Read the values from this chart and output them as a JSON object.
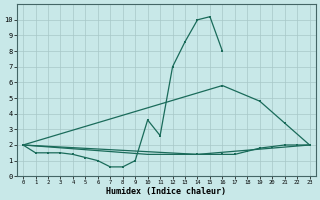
{
  "xlabel": "Humidex (Indice chaleur)",
  "background_color": "#c8e8e8",
  "line_color": "#1a6b5a",
  "curve1_x": [
    0,
    1,
    2,
    3,
    4,
    5,
    6,
    7,
    8,
    9,
    10,
    11,
    12,
    13,
    14,
    15,
    16
  ],
  "curve1_y": [
    2.0,
    1.5,
    1.5,
    1.5,
    1.4,
    1.2,
    1.0,
    0.6,
    0.6,
    1.0,
    3.6,
    2.6,
    7.0,
    8.6,
    10.0,
    10.2,
    8.0
  ],
  "curve2_x": [
    0,
    10,
    14,
    23
  ],
  "curve2_y": [
    2.0,
    1.4,
    1.4,
    2.0
  ],
  "curve3_x": [
    0,
    16,
    19,
    21,
    23
  ],
  "curve3_y": [
    2.0,
    5.8,
    4.8,
    3.4,
    2.0
  ],
  "curve4_x": [
    0,
    14,
    15,
    16,
    17,
    18,
    19,
    20,
    21,
    22,
    23
  ],
  "curve4_y": [
    2.0,
    1.4,
    1.4,
    1.4,
    1.4,
    1.6,
    1.8,
    1.9,
    2.0,
    2.0,
    2.0
  ],
  "xlim": [
    -0.5,
    23.5
  ],
  "ylim": [
    0,
    11
  ],
  "yticks": [
    0,
    1,
    2,
    3,
    4,
    5,
    6,
    7,
    8,
    9,
    10
  ],
  "xticks": [
    0,
    1,
    2,
    3,
    4,
    5,
    6,
    7,
    8,
    9,
    10,
    11,
    12,
    13,
    14,
    15,
    16,
    17,
    18,
    19,
    20,
    21,
    22,
    23
  ]
}
